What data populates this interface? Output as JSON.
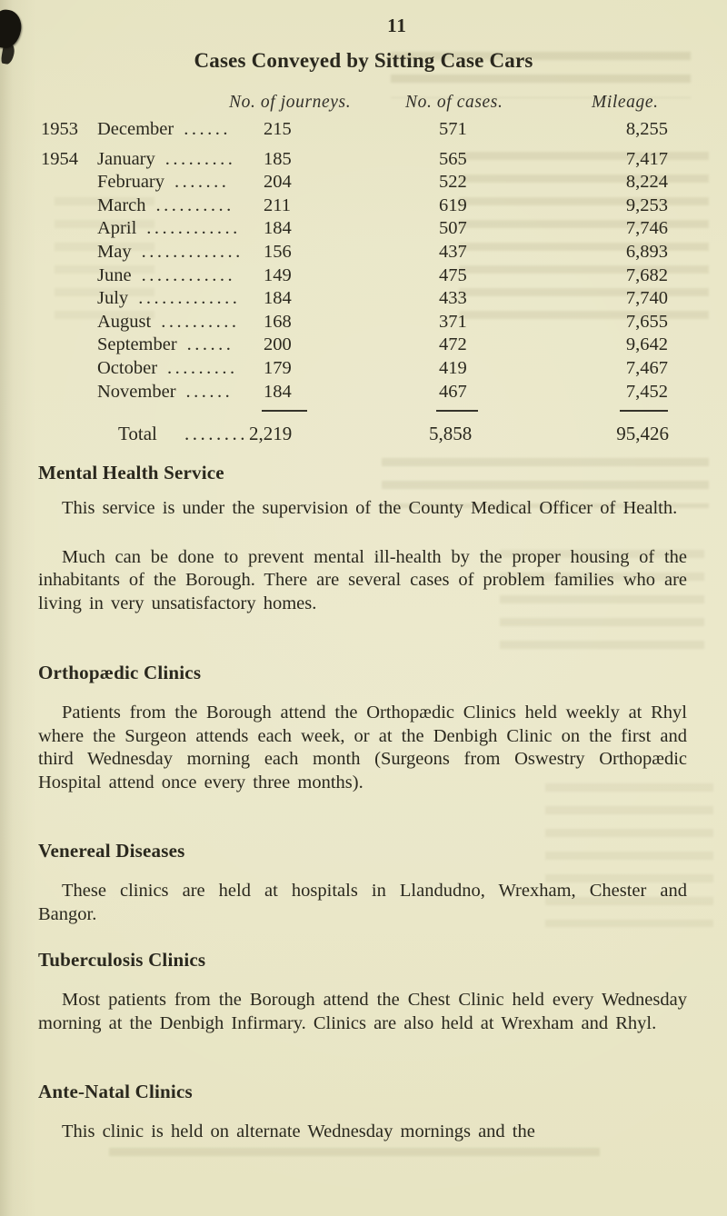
{
  "page": {
    "number": "11",
    "title": "Cases Conveyed by Sitting Case Cars"
  },
  "table": {
    "headers": {
      "journeys": "No. of journeys.",
      "cases": "No. of cases.",
      "mileage": "Mileage."
    },
    "rows": [
      {
        "year": "1953",
        "month": "December",
        "dots": "......",
        "journeys": "215",
        "cases": "571",
        "mileage": "8,255"
      },
      {
        "year": "1954",
        "month": "January",
        "dots": ".........",
        "journeys": "185",
        "cases": "565",
        "mileage": "7,417"
      },
      {
        "year": "",
        "month": "February",
        "dots": ".......",
        "journeys": "204",
        "cases": "522",
        "mileage": "8,224"
      },
      {
        "year": "",
        "month": "March",
        "dots": "..........",
        "journeys": "211",
        "cases": "619",
        "mileage": "9,253"
      },
      {
        "year": "",
        "month": "April",
        "dots": "............",
        "journeys": "184",
        "cases": "507",
        "mileage": "7,746"
      },
      {
        "year": "",
        "month": "May",
        "dots": ".............",
        "journeys": "156",
        "cases": "437",
        "mileage": "6,893"
      },
      {
        "year": "",
        "month": "June",
        "dots": "............",
        "journeys": "149",
        "cases": "475",
        "mileage": "7,682"
      },
      {
        "year": "",
        "month": "July",
        "dots": ".............",
        "journeys": "184",
        "cases": "433",
        "mileage": "7,740"
      },
      {
        "year": "",
        "month": "August",
        "dots": "..........",
        "journeys": "168",
        "cases": "371",
        "mileage": "7,655"
      },
      {
        "year": "",
        "month": "September",
        "dots": "......",
        "journeys": "200",
        "cases": "472",
        "mileage": "9,642"
      },
      {
        "year": "",
        "month": "October",
        "dots": ".........",
        "journeys": "179",
        "cases": "419",
        "mileage": "7,467"
      },
      {
        "year": "",
        "month": "November",
        "dots": "......",
        "journeys": "184",
        "cases": "467",
        "mileage": "7,452"
      }
    ],
    "total": {
      "label": "Total",
      "dots": "........",
      "journeys": "2,219",
      "cases": "5,858",
      "mileage": "95,426"
    }
  },
  "sections": [
    {
      "heading": "Mental Health Service",
      "paragraphs": [
        "This service is under the supervision of the County Medical Officer of Health.",
        "Much can be done to prevent mental ill-health by the proper housing of the inhabitants of the Borough.  There are several cases of problem families who are living in very unsatisfactory homes."
      ]
    },
    {
      "heading": "Orthopædic Clinics",
      "paragraphs": [
        "Patients from the Borough attend the Orthopædic Clinics held weekly at Rhyl where the Surgeon attends each week, or at the Denbigh Clinic on the first and third Wednesday morning each month (Surgeons from Oswestry Orthopædic Hospital attend once every three months)."
      ]
    },
    {
      "heading": "Venereal Diseases",
      "paragraphs": [
        "These clinics are held at hospitals in Llandudno, Wrexham, Chester and Bangor."
      ]
    },
    {
      "heading": "Tuberculosis Clinics",
      "paragraphs": [
        "Most patients from the Borough attend the Chest Clinic held every Wednesday morning at the Denbigh Infirmary.  Clinics are also held at Wrexham and Rhyl."
      ]
    },
    {
      "heading": "Ante-Natal Clinics",
      "paragraphs": [
        "This clinic is held on alternate Wednesday mornings and the"
      ]
    }
  ],
  "colors": {
    "paper": "#e8e5c4",
    "ink": "#2a281e"
  }
}
